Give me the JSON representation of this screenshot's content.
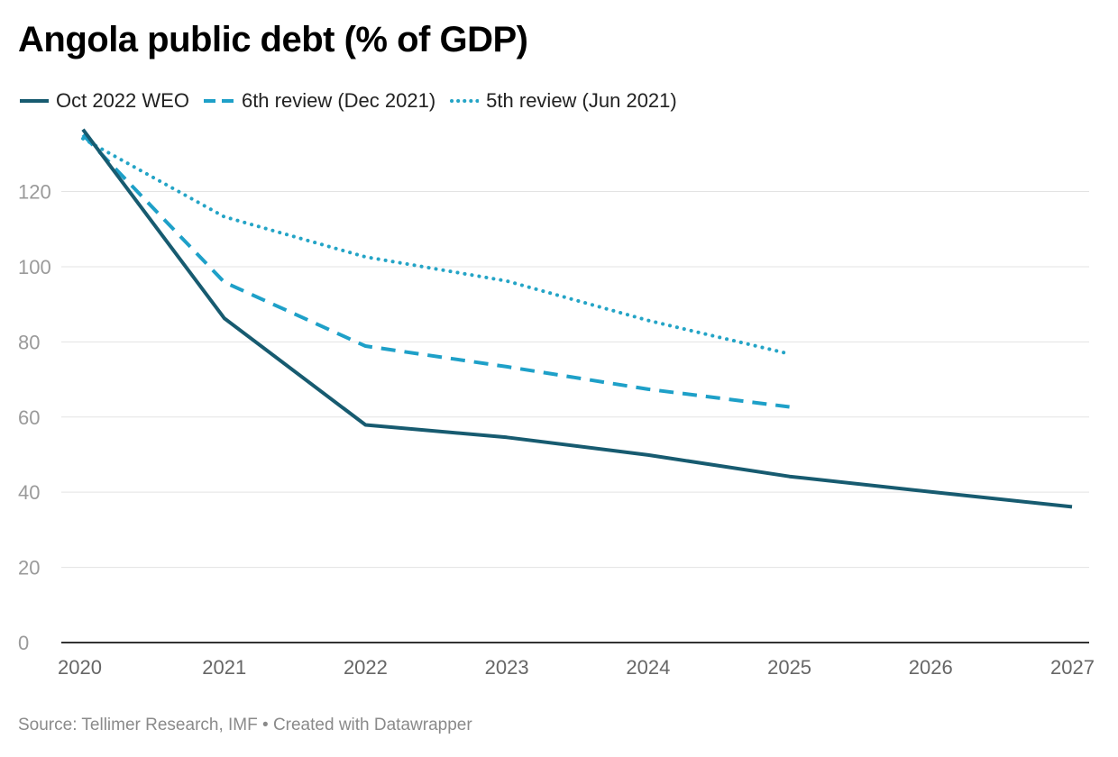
{
  "colors": {
    "oct2022": "#175b70",
    "dec2021": "#1ea0c8",
    "jun2021": "#24a4c6",
    "grid": "#e3e3e3",
    "axis": "#333333"
  },
  "chart_data": {
    "type": "line",
    "title": "Angola public debt (% of GDP)",
    "xlabel": "",
    "ylabel": "",
    "x": [
      2020,
      2021,
      2022,
      2023,
      2024,
      2025,
      2026,
      2027
    ],
    "xlim": [
      2020,
      2027
    ],
    "ylim": [
      0,
      135
    ],
    "y_ticks": [
      0,
      20,
      40,
      60,
      80,
      100,
      120
    ],
    "grid": true,
    "legend_position": "top-left",
    "series": [
      {
        "name": "Oct 2022 WEO",
        "style": "solid",
        "color": "#175b70",
        "values": [
          136.5,
          86.3,
          57.9,
          54.6,
          49.9,
          44.2,
          40.1,
          36.1
        ]
      },
      {
        "name": "6th review (Dec 2021)",
        "style": "dashed",
        "color": "#1ea0c8",
        "values": [
          135.1,
          95.9,
          78.9,
          73.4,
          67.4,
          62.7,
          null,
          null
        ]
      },
      {
        "name": "5th review (Jun 2021)",
        "style": "dotted",
        "color": "#24a4c6",
        "values": [
          134.1,
          113.3,
          102.6,
          96.2,
          85.7,
          76.8,
          null,
          null
        ]
      }
    ]
  },
  "footer": {
    "text": "Source: Tellimer Research, IMF • Created with Datawrapper"
  }
}
